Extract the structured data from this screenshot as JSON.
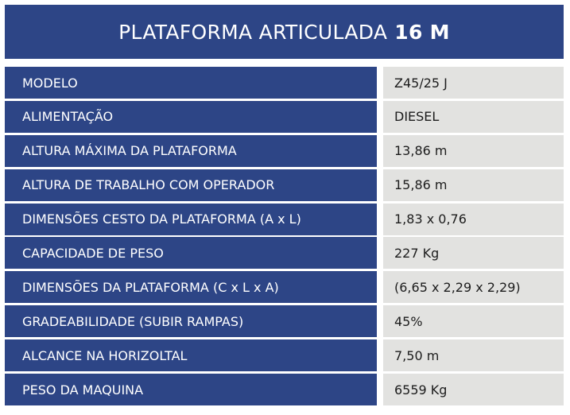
{
  "title": {
    "regular": "PLATAFORMA ARTICULADA",
    "bold": "16 M"
  },
  "colors": {
    "header_blue": "#2d4586",
    "value_gray": "#e2e2e0"
  },
  "specs": [
    {
      "label": "MODELO",
      "value": "Z45/25 J"
    },
    {
      "label": "ALIMENTAÇÃO",
      "value": "DIESEL"
    },
    {
      "label": "ALTURA MÁXIMA DA PLATAFORMA",
      "value": "13,86 m"
    },
    {
      "label": "ALTURA DE TRABALHO COM OPERADOR",
      "value": "15,86 m"
    },
    {
      "label": "DIMENSÕES CESTO DA PLATAFORMA (A x L)",
      "value": "1,83 x 0,76"
    },
    {
      "label": "CAPACIDADE DE PESO",
      "value": "227 Kg"
    },
    {
      "label": "DIMENSÕES DA PLATAFORMA (C x L x A)",
      "value": "(6,65 x 2,29 x 2,29)"
    },
    {
      "label": "GRADEABILIDADE (SUBIR RAMPAS)",
      "value": "45%"
    },
    {
      "label": "ALCANCE NA HORIZOLTAL",
      "value": "7,50 m"
    },
    {
      "label": "PESO DA MAQUINA",
      "value": "6559 Kg"
    }
  ]
}
